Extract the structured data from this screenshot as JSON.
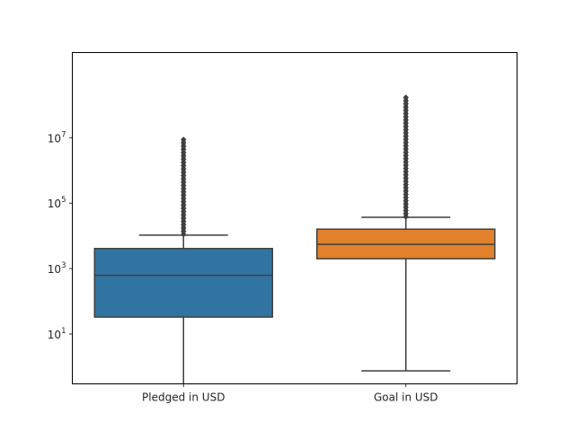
{
  "chart_data": {
    "type": "box",
    "title": "",
    "xlabel": "",
    "ylabel": "",
    "yscale": "log",
    "ylim": [
      0.3,
      4000000000
    ],
    "grid": false,
    "legend": "none",
    "categories": [
      "Pledged in USD",
      "Goal in USD"
    ],
    "y_tick_values": [
      10,
      1000,
      100000,
      10000000
    ],
    "y_tick_labels": [
      {
        "base": "10",
        "exp": "1"
      },
      {
        "base": "10",
        "exp": "3"
      },
      {
        "base": "10",
        "exp": "5"
      },
      {
        "base": "10",
        "exp": "7"
      }
    ],
    "boxes": [
      {
        "name": "Pledged in USD",
        "color": "#3274a1",
        "whisker_low": 0.3,
        "q1": 33,
        "median": 620,
        "q3": 4100,
        "whisker_high": 10500,
        "outlier_range": [
          11000,
          8800000
        ]
      },
      {
        "name": "Goal in USD",
        "color": "#e1812c",
        "whisker_low": 0.75,
        "q1": 2000,
        "median": 5500,
        "q3": 16000,
        "whisker_high": 37000,
        "outlier_range": [
          38000,
          170000000
        ]
      }
    ]
  }
}
